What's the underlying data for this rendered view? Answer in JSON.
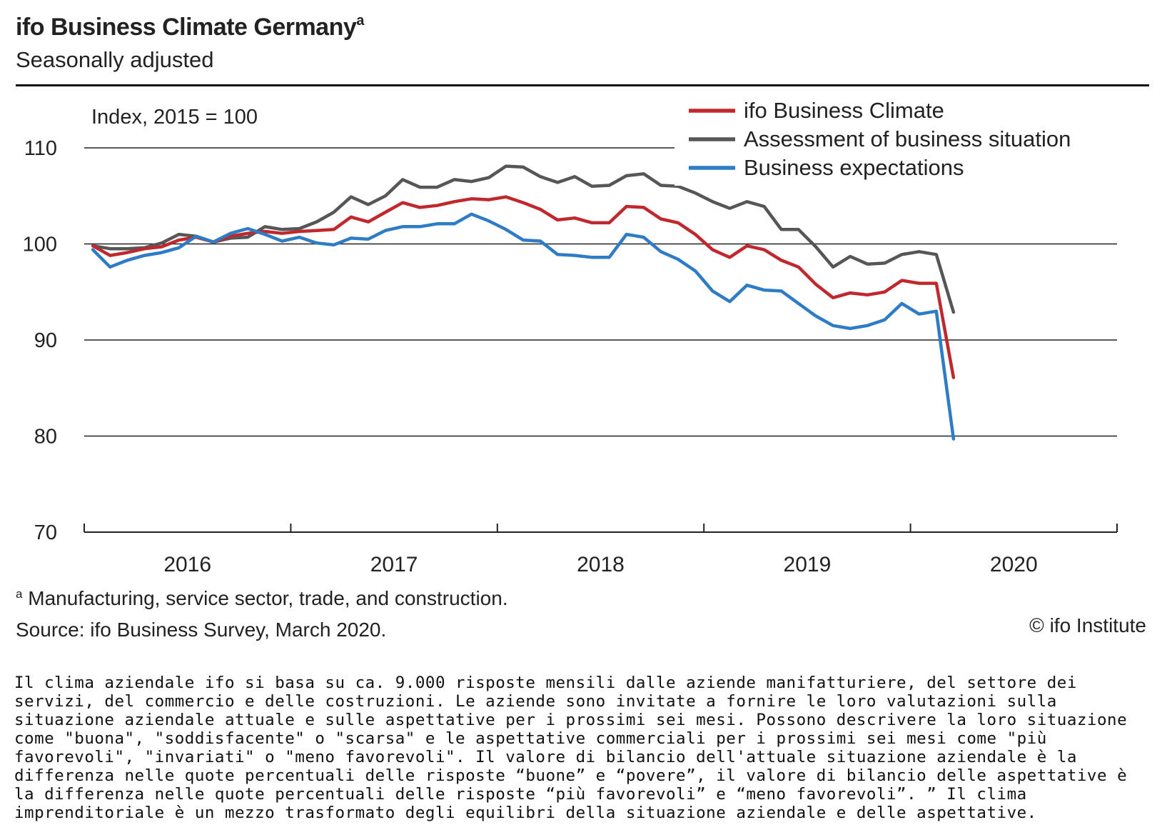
{
  "header": {
    "title": "ifo Business Climate Germany",
    "title_marker": "a",
    "subtitle": "Seasonally adjusted"
  },
  "chart_data": {
    "type": "line",
    "ylabel": "Index, 2015 = 100",
    "ylim": [
      70,
      110
    ],
    "yticks": [
      70,
      80,
      90,
      100,
      110
    ],
    "xlabels": [
      "2016",
      "2017",
      "2018",
      "2019",
      "2020"
    ],
    "x_start": "2016-01",
    "x_end": "2020-12",
    "legend_position": "top-right",
    "grid": "horizontal",
    "series": [
      {
        "name": "ifo Business Climate",
        "color": "#c0282d",
        "values": [
          99.8,
          98.8,
          99.1,
          99.5,
          99.7,
          100.4,
          100.7,
          100.2,
          100.8,
          101.1,
          101.3,
          101.1,
          101.3,
          101.4,
          101.5,
          102.8,
          102.3,
          103.3,
          104.3,
          103.8,
          104.0,
          104.4,
          104.7,
          104.6,
          104.9,
          104.3,
          103.6,
          102.5,
          102.7,
          102.2,
          102.2,
          103.9,
          103.8,
          102.6,
          102.2,
          101.0,
          99.4,
          98.6,
          99.8,
          99.4,
          98.3,
          97.6,
          95.8,
          94.4,
          94.9,
          94.7,
          95.0,
          96.2,
          95.9,
          95.9,
          86.1
        ]
      },
      {
        "name": "Assessment of business situation",
        "color": "#565656",
        "values": [
          99.8,
          99.5,
          99.5,
          99.6,
          100.1,
          101.0,
          100.8,
          100.2,
          100.6,
          100.7,
          101.8,
          101.5,
          101.6,
          102.3,
          103.3,
          104.9,
          104.1,
          105.0,
          106.7,
          105.9,
          105.9,
          106.7,
          106.5,
          106.9,
          108.1,
          108.0,
          107.0,
          106.4,
          107.0,
          106.0,
          106.1,
          107.1,
          107.3,
          106.1,
          106.0,
          105.3,
          104.4,
          103.7,
          104.4,
          103.9,
          101.5,
          101.5,
          99.7,
          97.6,
          98.7,
          97.9,
          98.0,
          98.9,
          99.2,
          98.9,
          92.9
        ]
      },
      {
        "name": "Business expectations",
        "color": "#2e7cc6",
        "values": [
          99.4,
          97.6,
          98.3,
          98.8,
          99.1,
          99.6,
          100.8,
          100.2,
          101.1,
          101.6,
          101.0,
          100.3,
          100.7,
          100.1,
          99.9,
          100.6,
          100.5,
          101.4,
          101.8,
          101.8,
          102.1,
          102.1,
          103.1,
          102.4,
          101.5,
          100.4,
          100.3,
          98.9,
          98.8,
          98.6,
          98.6,
          101.0,
          100.7,
          99.2,
          98.4,
          97.2,
          95.1,
          94.0,
          95.7,
          95.2,
          95.1,
          93.8,
          92.5,
          91.5,
          91.2,
          91.5,
          92.1,
          93.8,
          92.7,
          93.0,
          79.7
        ]
      }
    ]
  },
  "footer": {
    "footnote_marker": "a",
    "footnote": "Manufacturing, service sector, trade, and construction.",
    "source": "Source: ifo Business Survey, March 2020.",
    "copyright": "© ifo Institute"
  },
  "description": "Il clima aziendale ifo si basa su ca. 9.000 risposte mensili dalle aziende manifatturiere, del settore dei servizi, del commercio e delle costruzioni. Le aziende sono invitate a fornire le loro valutazioni sulla situazione aziendale attuale e sulle aspettative per i prossimi sei mesi. Possono descrivere la loro situazione come \"buona\", \"soddisfacente\" o \"scarsa\" e le aspettative commerciali per i prossimi sei mesi come \"più favorevoli\", \"invariati\" o \"meno favorevoli\". Il valore di bilancio dell'attuale situazione aziendale è la differenza nelle quote percentuali delle risposte “buone” e “povere”, il valore di bilancio delle aspettative è la differenza nelle quote percentuali delle risposte “più favorevoli” e “meno favorevoli”. ” Il clima imprenditoriale è un mezzo trasformato degli equilibri della situazione aziendale e delle aspettative."
}
